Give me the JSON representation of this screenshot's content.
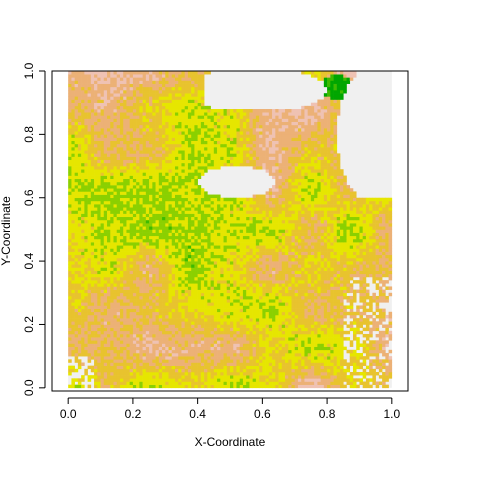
{
  "chart_data": {
    "type": "heatmap",
    "title": "",
    "xlabel": "X-Coordinate",
    "ylabel": "Y-Coordinate",
    "xlim": [
      -0.05,
      1.05
    ],
    "ylim": [
      -0.01,
      1.0
    ],
    "x_ticks": [
      "0.0",
      "0.2",
      "0.4",
      "0.6",
      "0.8",
      "1.0"
    ],
    "y_ticks": [
      "0.0",
      "0.2",
      "0.4",
      "0.6",
      "0.8",
      "1.0"
    ],
    "x_tick_values": [
      0.0,
      0.2,
      0.4,
      0.6,
      0.8,
      1.0
    ],
    "y_tick_values": [
      0.0,
      0.2,
      0.4,
      0.6,
      0.8,
      1.0
    ],
    "grid_extent": {
      "x": [
        0.0,
        1.0
      ],
      "y": [
        0.0,
        1.0
      ]
    },
    "colors": {
      "no_data": "#f0f0f0",
      "scale": [
        "#00a600",
        "#3ebb00",
        "#8bd000",
        "#e6e600",
        "#e8c32e",
        "#ecb176",
        "#efc2b3",
        "#f2f2f2"
      ]
    },
    "grid": false,
    "legend": "none"
  }
}
